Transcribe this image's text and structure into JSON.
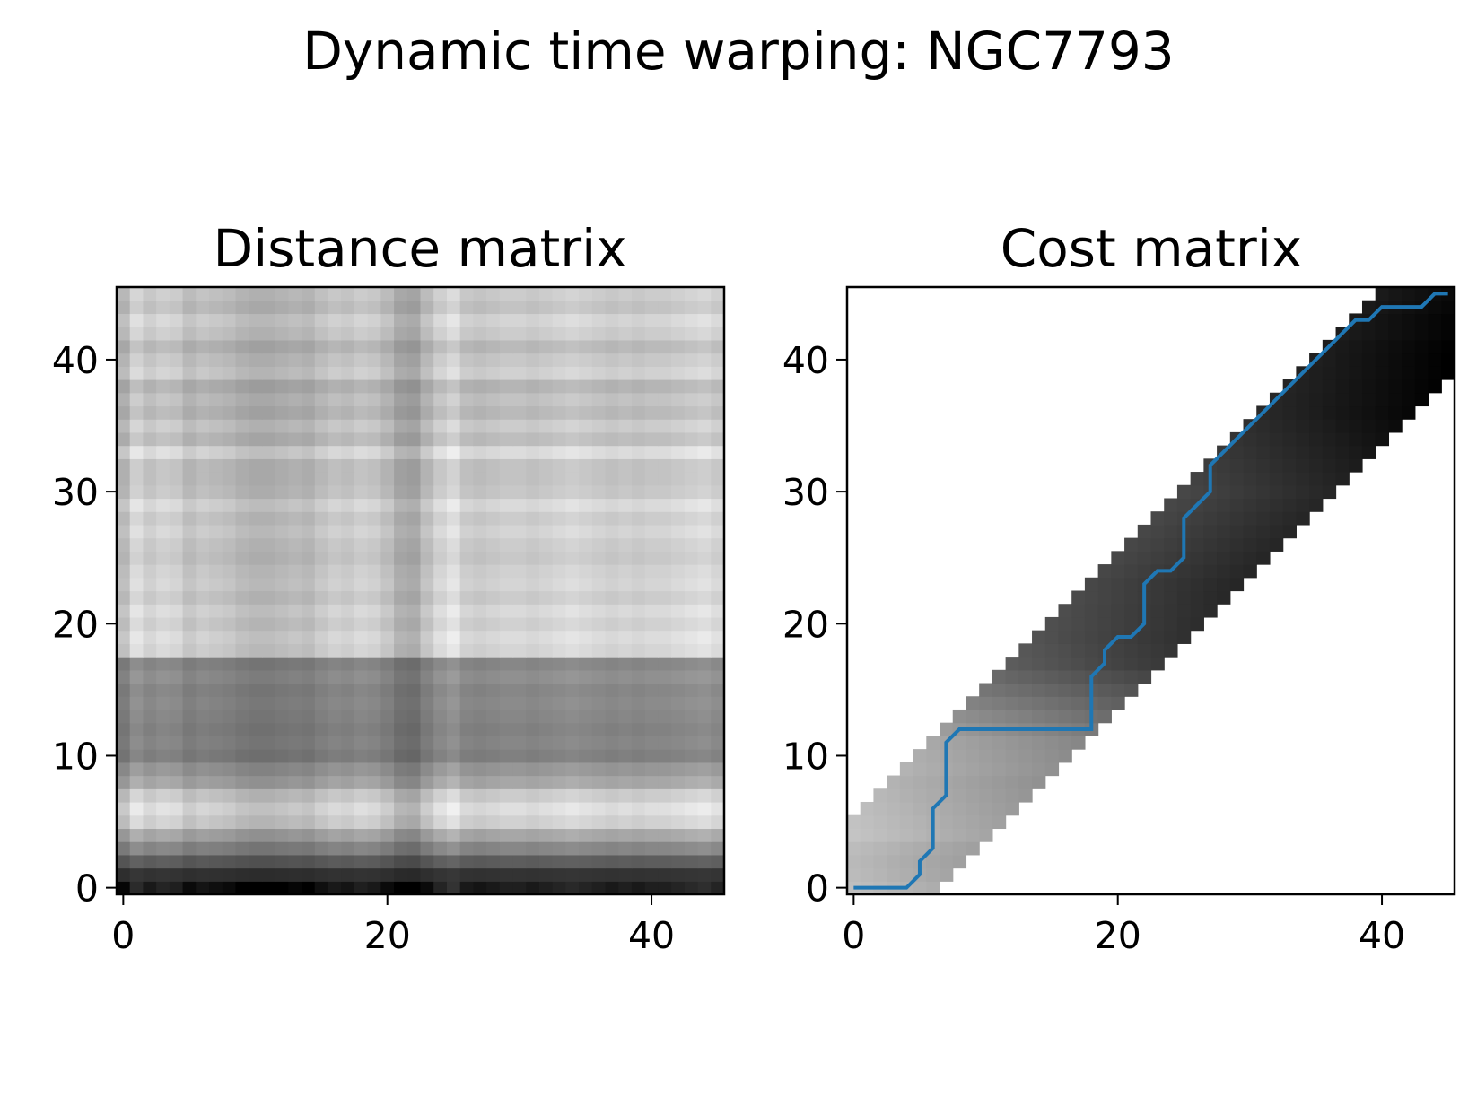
{
  "figure": {
    "title": "Dynamic time warping: NGC7793",
    "colors": {
      "path": "#1f77b4",
      "axes": "#000000",
      "background": "#ffffff"
    },
    "colormap": "gray_r"
  },
  "chart_data": [
    {
      "type": "heatmap",
      "title": "Distance matrix",
      "xlabel": "",
      "ylabel": "",
      "xlim": [
        -0.5,
        45.5
      ],
      "ylim": [
        -0.5,
        45.5
      ],
      "xticks": [
        0,
        20,
        40
      ],
      "yticks": [
        0,
        10,
        20,
        30,
        40
      ],
      "grid": false,
      "matrix_size": 46,
      "origin": "lower",
      "colormap": "gray_r",
      "row_profile": [
        1.0,
        0.78,
        0.6,
        0.42,
        0.28,
        0.1,
        0.04,
        0.12,
        0.28,
        0.35,
        0.45,
        0.42,
        0.44,
        0.42,
        0.4,
        0.42,
        0.38,
        0.42,
        0.08,
        0.05,
        0.1,
        0.06,
        0.12,
        0.08,
        0.1,
        0.14,
        0.12,
        0.08,
        0.12,
        0.06,
        0.14,
        0.16,
        0.16,
        0.05,
        0.18,
        0.12,
        0.2,
        0.16,
        0.22,
        0.1,
        0.14,
        0.2,
        0.12,
        0.08,
        0.16,
        0.12
      ],
      "column_profile": [
        0.2,
        0.05,
        0.12,
        0.08,
        0.1,
        0.18,
        0.14,
        0.16,
        0.18,
        0.22,
        0.24,
        0.24,
        0.22,
        0.2,
        0.22,
        0.16,
        0.12,
        0.14,
        0.1,
        0.12,
        0.18,
        0.28,
        0.3,
        0.18,
        0.08,
        0.02,
        0.12,
        0.14,
        0.12,
        0.1,
        0.1,
        0.12,
        0.1,
        0.08,
        0.06,
        0.08,
        0.1,
        0.12,
        0.1,
        0.12,
        0.1,
        0.1,
        0.08,
        0.06,
        0.04,
        0.08
      ]
    },
    {
      "type": "heatmap",
      "title": "Cost matrix",
      "xlabel": "",
      "ylabel": "",
      "xlim": [
        -0.5,
        45.5
      ],
      "ylim": [
        -0.5,
        45.5
      ],
      "xticks": [
        0,
        20,
        40
      ],
      "yticks": [
        0,
        10,
        20,
        30,
        40
      ],
      "grid": false,
      "matrix_size": 46,
      "origin": "lower",
      "colormap": "gray_r",
      "band": {
        "upper_offset": 6,
        "lower_offset": 5
      },
      "row_intensity": [
        0.25,
        0.28,
        0.3,
        0.3,
        0.28,
        0.3,
        0.32,
        0.34,
        0.36,
        0.36,
        0.38,
        0.4,
        0.45,
        0.5,
        0.55,
        0.6,
        0.65,
        0.7,
        0.72,
        0.74,
        0.75,
        0.76,
        0.77,
        0.78,
        0.78,
        0.78,
        0.78,
        0.78,
        0.78,
        0.78,
        0.78,
        0.8,
        0.82,
        0.84,
        0.86,
        0.88,
        0.9,
        0.91,
        0.92,
        0.93,
        0.94,
        0.95,
        0.95,
        0.96,
        0.96,
        0.96
      ],
      "warping_path": {
        "name": "",
        "x": [
          0,
          4,
          5,
          5,
          6,
          6,
          7,
          7,
          8,
          18,
          18,
          19,
          19,
          20,
          21,
          22,
          22,
          23,
          24,
          25,
          25,
          26,
          27,
          27,
          38,
          39,
          40,
          43,
          44,
          45
        ],
        "y": [
          0,
          0,
          1,
          2,
          3,
          6,
          7,
          11,
          12,
          12,
          16,
          17,
          18,
          19,
          19,
          20,
          23,
          24,
          24,
          25,
          28,
          29,
          30,
          32,
          43,
          43,
          44,
          44,
          45,
          45
        ]
      }
    }
  ]
}
